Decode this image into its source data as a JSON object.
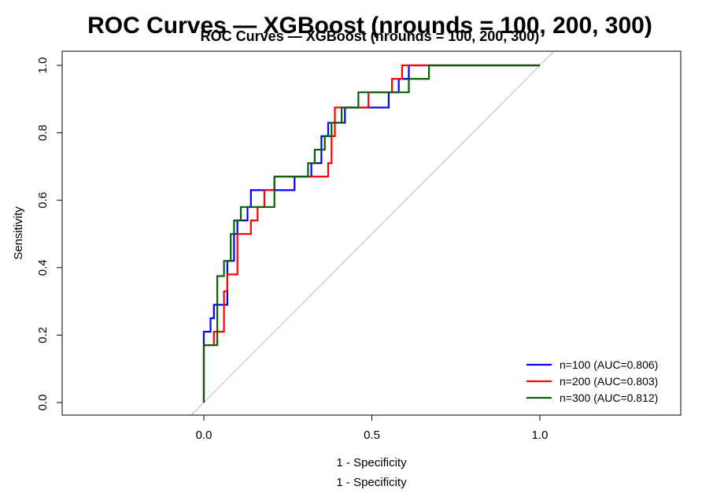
{
  "chart_data": {
    "type": "line",
    "title": "ROC Curves — XGBoost (nrounds = 100, 200, 300)",
    "xlabel": "1 - Specificity",
    "ylabel": "Sensitivity",
    "xlim": [
      -0.4,
      1.4
    ],
    "ylim": [
      0,
      1
    ],
    "x_ticks": [
      "0.0",
      "0.5",
      "1.0"
    ],
    "y_ticks": [
      "0.0",
      "0.2",
      "0.4",
      "0.6",
      "0.8",
      "1.0"
    ],
    "reference_line": {
      "x": [
        -0.04,
        1.04
      ],
      "y": [
        -0.04,
        1.04
      ],
      "color": "#bdbdbd"
    },
    "legend": {
      "position": "bottom-right"
    },
    "series": [
      {
        "name": "n=100 (AUC=0.806)",
        "color": "#0000ff",
        "x": [
          0,
          0,
          0.02,
          0.02,
          0.03,
          0.03,
          0.07,
          0.07,
          0.09,
          0.09,
          0.1,
          0.1,
          0.13,
          0.13,
          0.14,
          0.14,
          0.16,
          0.16,
          0.27,
          0.27,
          0.32,
          0.32,
          0.35,
          0.35,
          0.37,
          0.37,
          0.42,
          0.42,
          0.55,
          0.55,
          0.58,
          0.58,
          0.61,
          0.61,
          1.0
        ],
        "y": [
          0,
          0.21,
          0.21,
          0.25,
          0.25,
          0.29,
          0.29,
          0.42,
          0.42,
          0.5,
          0.5,
          0.54,
          0.54,
          0.58,
          0.58,
          0.63,
          0.63,
          0.63,
          0.63,
          0.67,
          0.67,
          0.71,
          0.71,
          0.79,
          0.79,
          0.83,
          0.83,
          0.875,
          0.875,
          0.92,
          0.92,
          0.96,
          0.96,
          1.0,
          1.0
        ]
      },
      {
        "name": "n=200 (AUC=0.803)",
        "color": "#ff0000",
        "x": [
          0,
          0,
          0.03,
          0.03,
          0.06,
          0.06,
          0.07,
          0.07,
          0.1,
          0.1,
          0.14,
          0.14,
          0.16,
          0.16,
          0.18,
          0.18,
          0.21,
          0.21,
          0.37,
          0.37,
          0.38,
          0.38,
          0.39,
          0.39,
          0.49,
          0.49,
          0.56,
          0.56,
          0.59,
          0.59,
          0.67,
          0.67,
          1.0
        ],
        "y": [
          0,
          0.17,
          0.17,
          0.21,
          0.21,
          0.33,
          0.33,
          0.38,
          0.38,
          0.5,
          0.5,
          0.54,
          0.54,
          0.58,
          0.58,
          0.63,
          0.63,
          0.67,
          0.67,
          0.71,
          0.71,
          0.79,
          0.79,
          0.875,
          0.875,
          0.92,
          0.92,
          0.96,
          0.96,
          1.0,
          1.0,
          1.0,
          1.0
        ]
      },
      {
        "name": "n=300 (AUC=0.812)",
        "color": "#006400",
        "x": [
          0,
          0,
          0.04,
          0.04,
          0.06,
          0.06,
          0.08,
          0.08,
          0.09,
          0.09,
          0.11,
          0.11,
          0.21,
          0.21,
          0.31,
          0.31,
          0.33,
          0.33,
          0.36,
          0.36,
          0.38,
          0.38,
          0.41,
          0.41,
          0.46,
          0.46,
          0.61,
          0.61,
          0.67,
          0.67,
          1.0
        ],
        "y": [
          0,
          0.17,
          0.17,
          0.375,
          0.375,
          0.42,
          0.42,
          0.5,
          0.5,
          0.54,
          0.54,
          0.58,
          0.58,
          0.67,
          0.67,
          0.71,
          0.71,
          0.75,
          0.75,
          0.79,
          0.79,
          0.83,
          0.83,
          0.875,
          0.875,
          0.92,
          0.92,
          0.96,
          0.96,
          1.0,
          1.0
        ]
      }
    ]
  }
}
